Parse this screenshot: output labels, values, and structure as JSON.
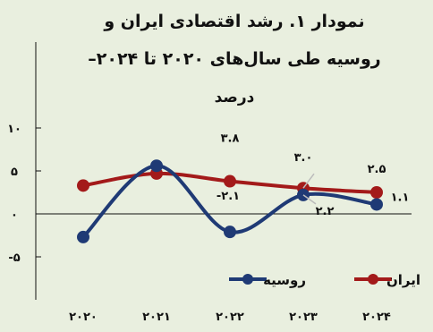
{
  "chart_data": {
    "type": "line",
    "title_line1": "نمودار ۱. رشد اقتصادی ایران و",
    "title_line2": "روسیه طی سال‌های ۲۰۲۰ تا ۲۰۲۴–",
    "unit": "درصد",
    "x": [
      2020,
      2021,
      2022,
      2023,
      2024
    ],
    "x_tick_labels": [
      "۲۰۲۰",
      "۲۰۲۱",
      "۲۰۲۲",
      "۲۰۲۳",
      "۲۰۲۴"
    ],
    "y_tick_labels": [
      "۱۰",
      "۵",
      "۰",
      "-۵"
    ],
    "ylim": [
      -5,
      10
    ],
    "yticks": [
      10,
      5,
      0,
      -5
    ],
    "series": [
      {
        "name": "ایران",
        "color": "#a31a1a",
        "values": [
          3.3,
          4.7,
          3.8,
          3.0,
          2.5
        ],
        "data_labels": [
          "",
          "",
          "۳.۸",
          "۳.۰",
          "۲.۵"
        ]
      },
      {
        "name": "روسیه",
        "color": "#1f3a75",
        "values": [
          -2.7,
          5.6,
          -2.1,
          2.2,
          1.1
        ],
        "data_labels": [
          "",
          "",
          "-۲.۱",
          "۲.۲",
          "۱.۱"
        ]
      }
    ],
    "legend_position": "bottom-right",
    "grid": false
  }
}
